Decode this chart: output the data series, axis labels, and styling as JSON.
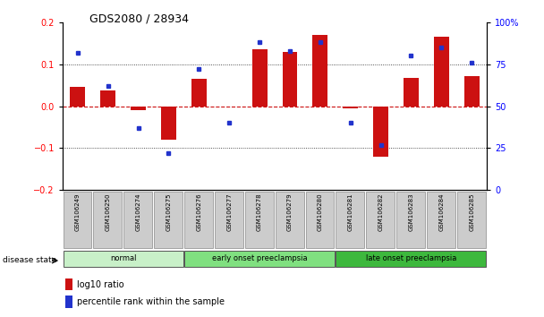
{
  "title": "GDS2080 / 28934",
  "samples": [
    "GSM106249",
    "GSM106250",
    "GSM106274",
    "GSM106275",
    "GSM106276",
    "GSM106277",
    "GSM106278",
    "GSM106279",
    "GSM106280",
    "GSM106281",
    "GSM106282",
    "GSM106283",
    "GSM106284",
    "GSM106285"
  ],
  "log10_ratio": [
    0.045,
    0.038,
    -0.01,
    -0.08,
    0.065,
    0.0,
    0.135,
    0.13,
    0.17,
    -0.005,
    -0.12,
    0.068,
    0.165,
    0.072
  ],
  "percentile_rank": [
    82,
    62,
    37,
    22,
    72,
    40,
    88,
    83,
    88,
    40,
    27,
    80,
    85,
    76
  ],
  "groups": [
    {
      "label": "normal",
      "start": 0,
      "end": 3,
      "color": "#c8f0c8"
    },
    {
      "label": "early onset preeclampsia",
      "start": 4,
      "end": 8,
      "color": "#80e080"
    },
    {
      "label": "late onset preeclampsia",
      "start": 9,
      "end": 13,
      "color": "#3db83d"
    }
  ],
  "ylim_left": [
    -0.2,
    0.2
  ],
  "ylim_right": [
    0,
    100
  ],
  "yticks_left": [
    -0.2,
    -0.1,
    0.0,
    0.1,
    0.2
  ],
  "yticks_right": [
    0,
    25,
    50,
    75,
    100
  ],
  "ytick_labels_right": [
    "0",
    "25",
    "50",
    "75",
    "100%"
  ],
  "bar_color": "#cc1111",
  "dot_color": "#2233cc",
  "zeroline_color": "#cc1111",
  "grid_color": "#222222",
  "bg_color": "#ffffff",
  "tick_bg_color": "#cccccc",
  "disease_state_label": "disease state",
  "legend_ratio_label": "log10 ratio",
  "legend_pct_label": "percentile rank within the sample"
}
